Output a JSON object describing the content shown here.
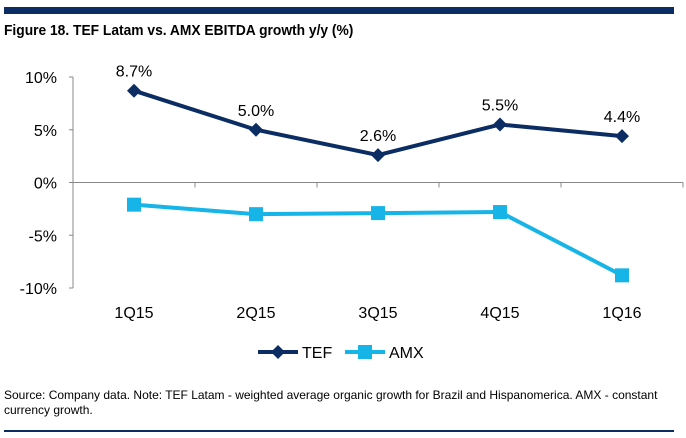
{
  "title": "Figure 18. TEF Latam vs. AMX EBITDA growth y/y (%)",
  "source": "Source: Company data. Note: TEF Latam - weighted average organic growth for Brazil and Hispanomerica. AMX - constant currency growth.",
  "colors": {
    "TEF": "#0b2d63",
    "AMX": "#17b4e8",
    "bars": "#0b2d63"
  },
  "chart_data": {
    "type": "line",
    "title": "Figure 18. TEF Latam vs. AMX EBITDA growth y/y (%)",
    "categories": [
      "1Q15",
      "2Q15",
      "3Q15",
      "4Q15",
      "1Q16"
    ],
    "ylim": [
      -10,
      10
    ],
    "yticks": [
      10,
      5,
      0,
      -5,
      -10
    ],
    "ytick_labels": [
      "10%",
      "5%",
      "0%",
      "-5%",
      "-10%"
    ],
    "grid": false,
    "legend": "bottom",
    "series": [
      {
        "name": "TEF",
        "values": [
          8.7,
          5.0,
          2.6,
          5.5,
          4.4
        ],
        "labels": [
          "8.7%",
          "5.0%",
          "2.6%",
          "5.5%",
          "4.4%"
        ],
        "marker": "diamond"
      },
      {
        "name": "AMX",
        "values": [
          -2.1,
          -3.0,
          -2.9,
          -2.8,
          -8.8
        ],
        "marker": "square"
      }
    ]
  }
}
